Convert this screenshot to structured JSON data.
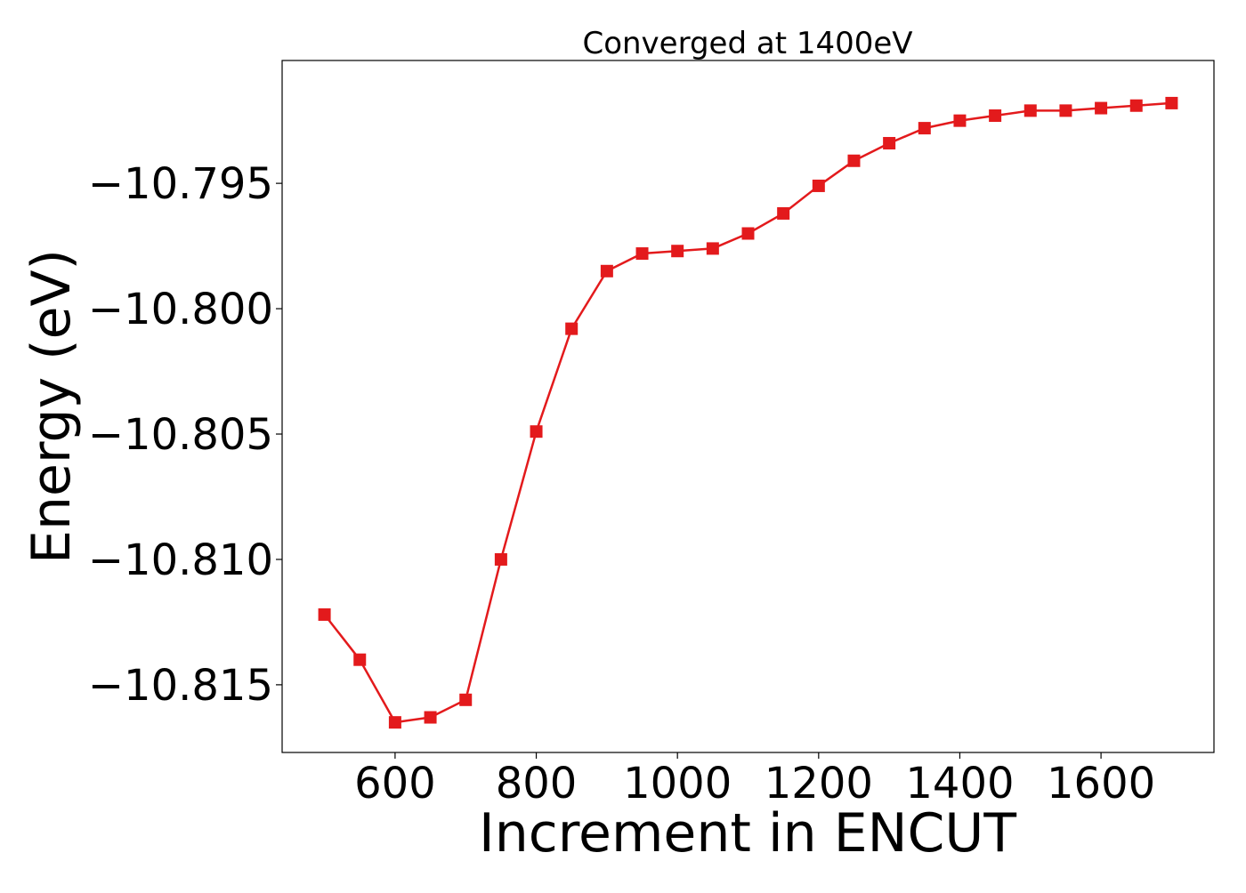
{
  "colors": {
    "series": "#e31a1c",
    "axis": "#000000",
    "background": "#ffffff"
  },
  "chart_data": {
    "type": "line",
    "title": "Converged at 1400eV",
    "xlabel": "Increment in ENCUT",
    "ylabel": "Energy (eV)",
    "xlim": [
      440,
      1760
    ],
    "ylim": [
      -10.8177,
      -10.7901
    ],
    "xticks": [
      600,
      800,
      1000,
      1200,
      1400,
      1600
    ],
    "yticks": [
      -10.815,
      -10.81,
      -10.805,
      -10.8,
      -10.795
    ],
    "ytick_labels": [
      "−10.815",
      "−10.810",
      "−10.805",
      "−10.800",
      "−10.795"
    ],
    "grid": false,
    "marker": "square",
    "series": [
      {
        "x": [
          500,
          550,
          600,
          650,
          700,
          750,
          800,
          850,
          900,
          950,
          1000,
          1050,
          1100,
          1150,
          1200,
          1250,
          1300,
          1350,
          1400,
          1450,
          1500,
          1550,
          1600,
          1650,
          1700
        ],
        "y": [
          -10.8122,
          -10.814,
          -10.8165,
          -10.8163,
          -10.8156,
          -10.81,
          -10.8049,
          -10.8008,
          -10.7985,
          -10.7978,
          -10.7977,
          -10.7976,
          -10.797,
          -10.7962,
          -10.7951,
          -10.7941,
          -10.7934,
          -10.7928,
          -10.7925,
          -10.7923,
          -10.7921,
          -10.7921,
          -10.792,
          -10.7919,
          -10.7918
        ]
      }
    ]
  }
}
